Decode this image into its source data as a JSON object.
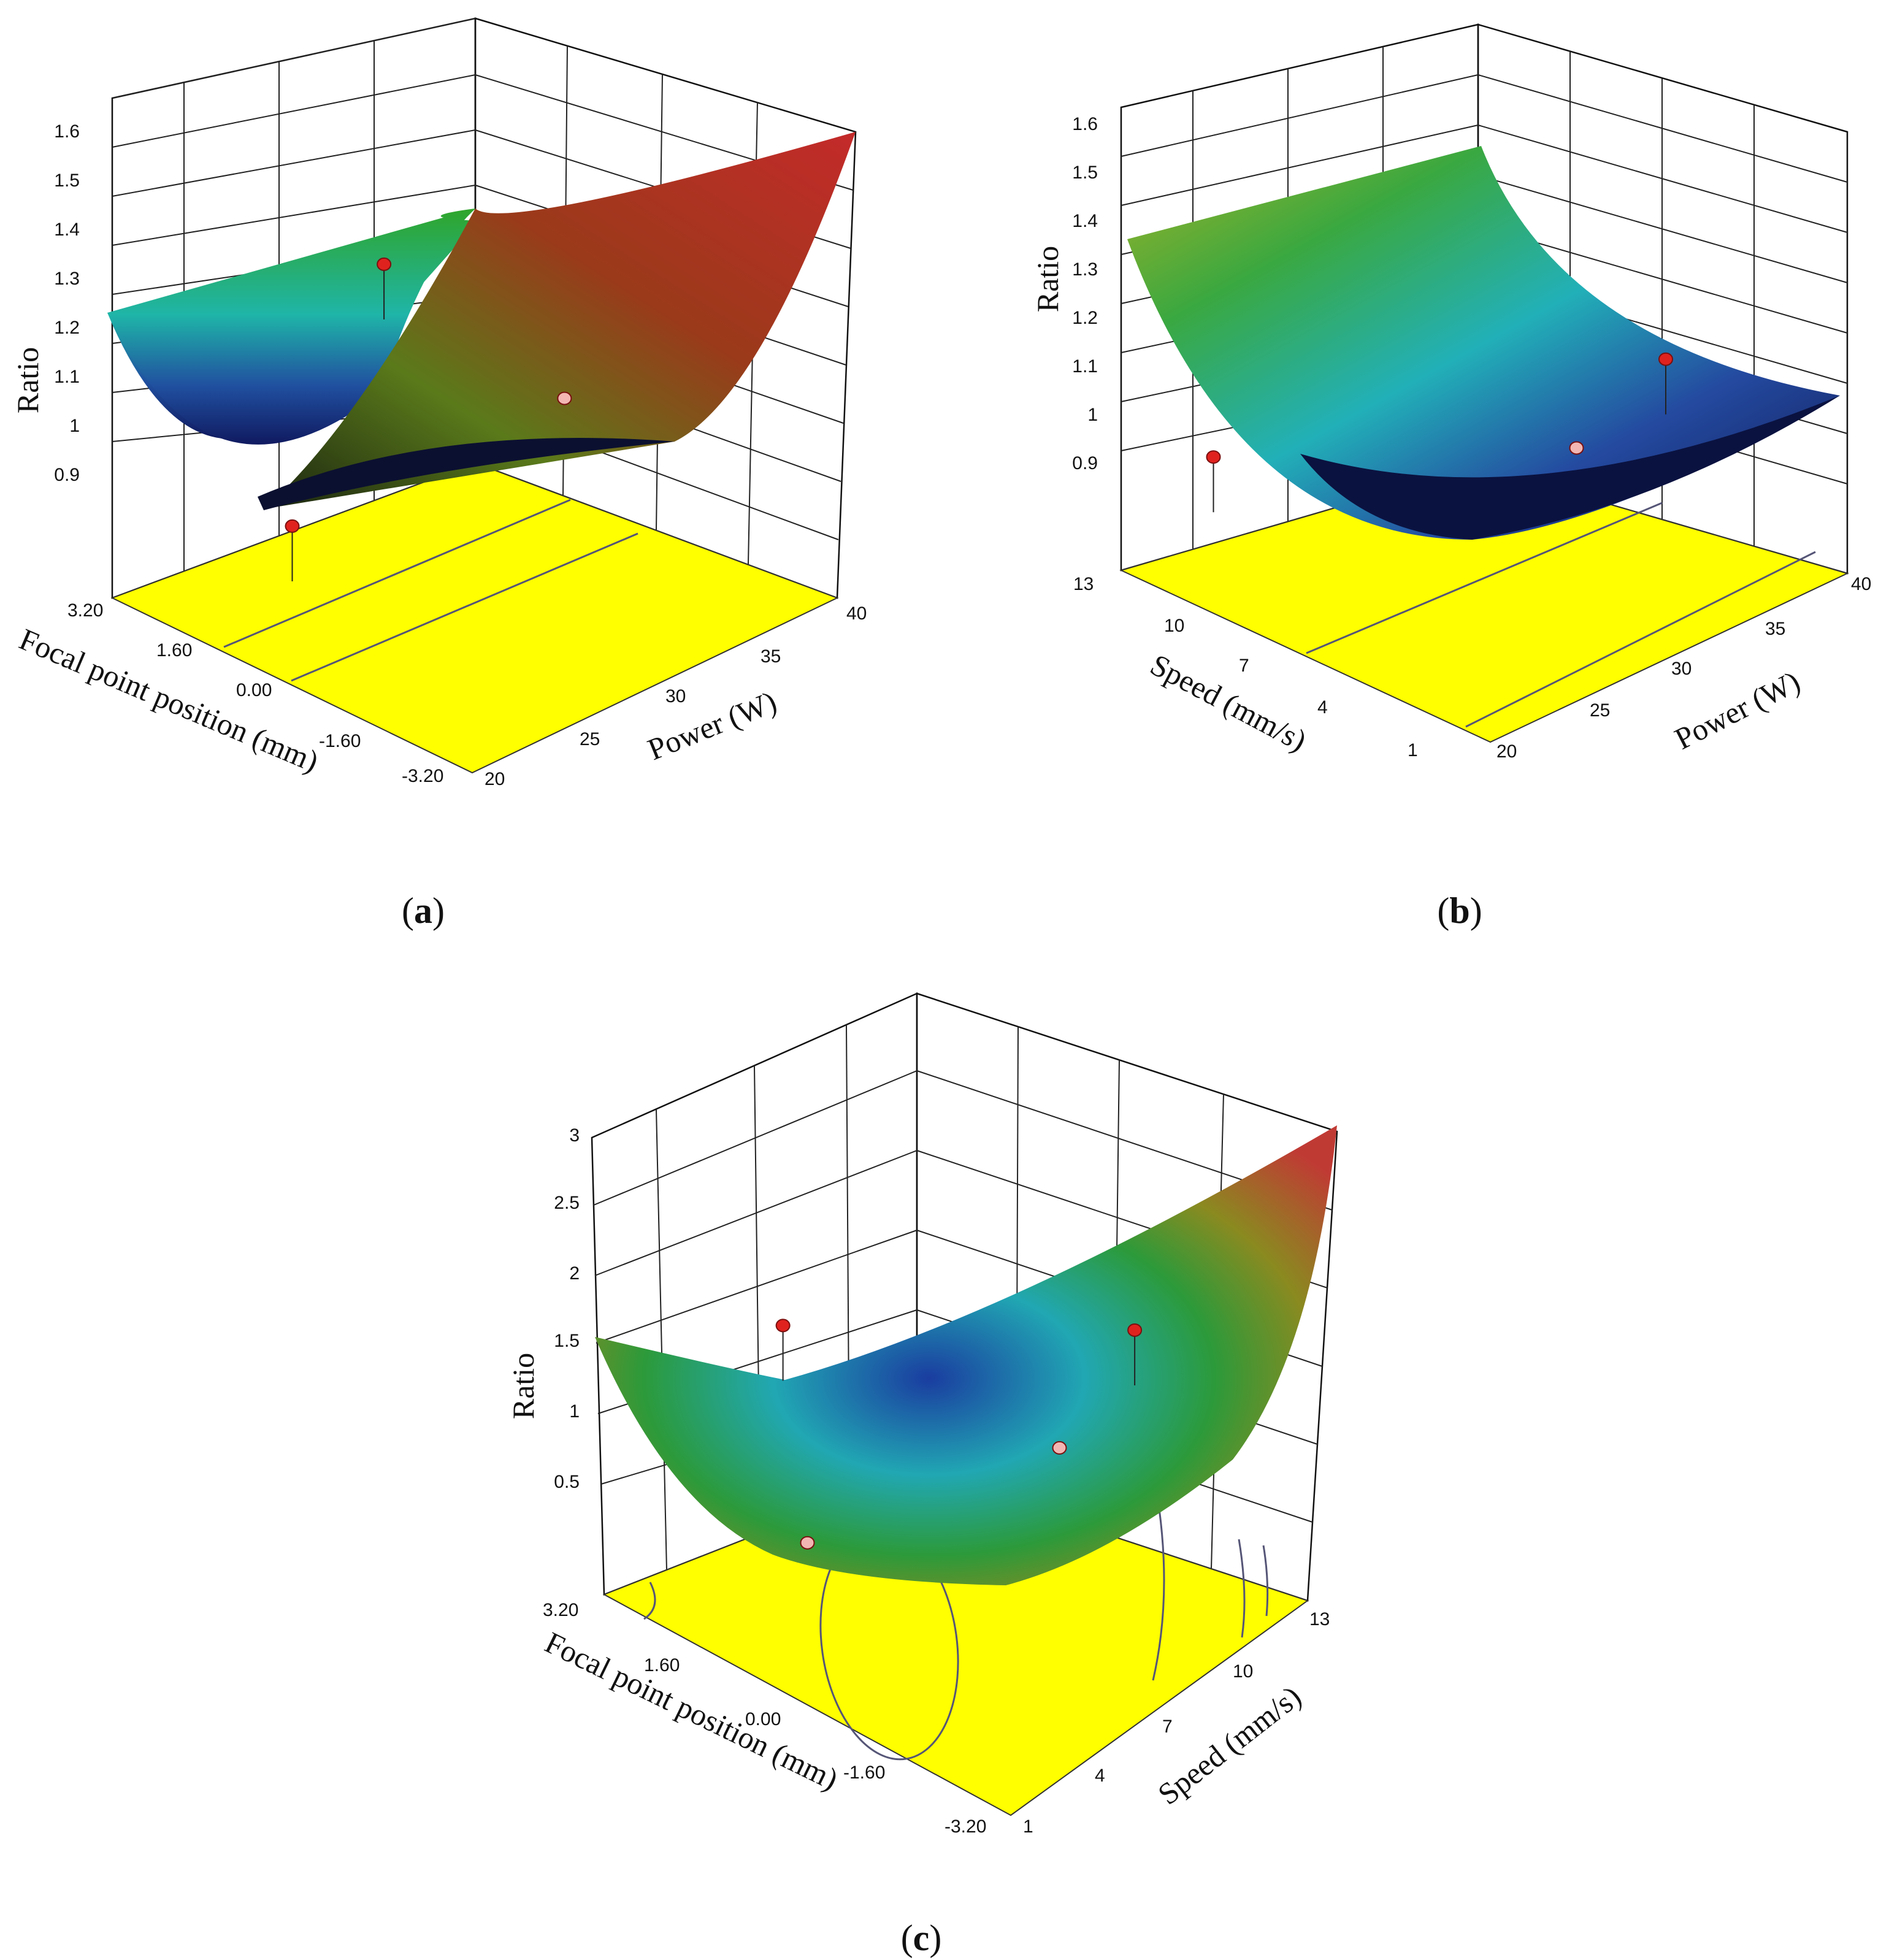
{
  "chart_data": [
    {
      "panel": "a",
      "caption_letter": "a",
      "type": "surface3d",
      "zlabel": "Ratio",
      "xlabel": "Focal point position (mm)",
      "ylabel": "Power (W)",
      "x_ticks": [
        "3.20",
        "1.60",
        "0.00",
        "-1.60",
        "-3.20"
      ],
      "y_ticks": [
        "20",
        "25",
        "30",
        "35",
        "40"
      ],
      "z_ticks": [
        "0.9",
        "1",
        "1.1",
        "1.2",
        "1.3",
        "1.4",
        "1.5",
        "1.6"
      ],
      "zlim": [
        0.8,
        1.6
      ],
      "surface_corners": [
        {
          "x": 3.2,
          "y": 20,
          "z": 1.19
        },
        {
          "x": 0.0,
          "y": 20,
          "z": 0.87
        },
        {
          "x": -3.2,
          "y": 20,
          "z": 0.94
        },
        {
          "x": 3.2,
          "y": 40,
          "z": 1.3
        },
        {
          "x": 0.0,
          "y": 40,
          "z": 0.98
        },
        {
          "x": -3.2,
          "y": 40,
          "z": 1.53
        }
      ],
      "points": [
        {
          "x": 0.0,
          "y": 20,
          "z": 0.89,
          "above": true
        },
        {
          "x": 1.6,
          "y": 30,
          "z": 1.43,
          "above": true
        },
        {
          "x": -1.6,
          "y": 30,
          "z": 1.22,
          "above": false
        }
      ]
    },
    {
      "panel": "b",
      "caption_letter": "b",
      "type": "surface3d",
      "zlabel": "Ratio",
      "xlabel": "Speed (mm/s)",
      "ylabel": "Power (W)",
      "x_ticks": [
        "13",
        "10",
        "7",
        "4",
        "1"
      ],
      "y_ticks": [
        "20",
        "25",
        "30",
        "35",
        "40"
      ],
      "z_ticks": [
        "0.9",
        "1",
        "1.1",
        "1.2",
        "1.3",
        "1.4",
        "1.5",
        "1.6"
      ],
      "zlim": [
        0.8,
        1.6
      ],
      "surface_corners": [
        {
          "x": 13,
          "y": 20,
          "z": 1.32
        },
        {
          "x": 1,
          "y": 20,
          "z": 1.48
        },
        {
          "x": 13,
          "y": 40,
          "z": 1.0
        },
        {
          "x": 1,
          "y": 40,
          "z": 1.0
        }
      ],
      "points": [
        {
          "x": 10,
          "y": 20,
          "z": 0.88,
          "above": true
        },
        {
          "x": 4,
          "y": 35,
          "z": 1.14,
          "above": true
        },
        {
          "x": 4,
          "y": 30,
          "z": 0.95,
          "above": false
        }
      ]
    },
    {
      "panel": "c",
      "caption_letter": "c",
      "type": "surface3d",
      "zlabel": "Ratio",
      "xlabel": "Focal point position (mm)",
      "ylabel": "Speed (mm/s)",
      "x_ticks": [
        "3.20",
        "1.60",
        "0.00",
        "-1.60",
        "-3.20"
      ],
      "y_ticks": [
        "1",
        "4",
        "7",
        "10",
        "13"
      ],
      "z_ticks": [
        "0.5",
        "1",
        "1.5",
        "2",
        "2.5",
        "3"
      ],
      "zlim": [
        0.0,
        3.0
      ],
      "surface_corners": [
        {
          "x": 3.2,
          "y": 1,
          "z": 1.58
        },
        {
          "x": -3.2,
          "y": 1,
          "z": 0.9
        },
        {
          "x": 3.2,
          "y": 13,
          "z": 1.95
        },
        {
          "x": -3.2,
          "y": 13,
          "z": 2.98
        }
      ],
      "points": [
        {
          "x": 1.6,
          "y": 4,
          "z": 1.97,
          "above": true
        },
        {
          "x": -1.6,
          "y": 10,
          "z": 1.95,
          "above": true
        },
        {
          "x": -1.6,
          "y": 7,
          "z": 1.05,
          "above": false
        },
        {
          "x": 0.0,
          "y": 1,
          "z": 0.35,
          "above": false
        }
      ]
    }
  ]
}
